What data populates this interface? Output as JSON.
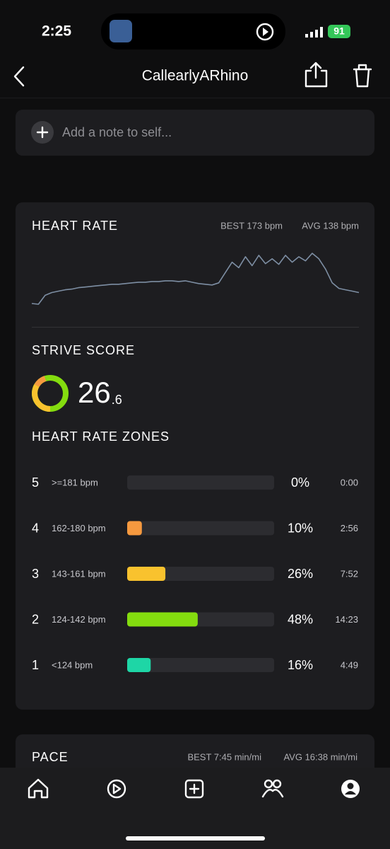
{
  "status_bar": {
    "time": "2:25",
    "battery": "91"
  },
  "header": {
    "title": "CallearlyARhino"
  },
  "note": {
    "placeholder": "Add a note to self..."
  },
  "heart_rate": {
    "title": "HEART RATE",
    "best": "BEST 173 bpm",
    "avg": "AVG 138 bpm",
    "samples": [
      100,
      99,
      112,
      116,
      118,
      120,
      121,
      123,
      124,
      125,
      126,
      127,
      128,
      128,
      129,
      130,
      131,
      131,
      132,
      132,
      133,
      133,
      132,
      133,
      131,
      129,
      128,
      127,
      130,
      145,
      160,
      152,
      168,
      155,
      170,
      158,
      165,
      157,
      170,
      160,
      168,
      162,
      173,
      165,
      150,
      130,
      122,
      120,
      118,
      116
    ]
  },
  "strive": {
    "title": "STRIVE SCORE",
    "score": "26",
    "decimal": ".6"
  },
  "zones": {
    "title": "HEART RATE ZONES",
    "rows": [
      {
        "zone": "5",
        "range": ">=181 bpm",
        "pct": 0,
        "pct_label": "0%",
        "time": "0:00"
      },
      {
        "zone": "4",
        "range": "162-180 bpm",
        "pct": 10,
        "pct_label": "10%",
        "time": "2:56",
        "color": "#f6993f"
      },
      {
        "zone": "3",
        "range": "143-161 bpm",
        "pct": 26,
        "pct_label": "26%",
        "time": "7:52",
        "color": "#f9c22e"
      },
      {
        "zone": "2",
        "range": "124-142 bpm",
        "pct": 48,
        "pct_label": "48%",
        "time": "14:23",
        "color": "#84dc0f"
      },
      {
        "zone": "1",
        "range": "<124 bpm",
        "pct": 16,
        "pct_label": "16%",
        "time": "4:49",
        "color": "#1ed6a6"
      }
    ]
  },
  "pace": {
    "title": "PACE",
    "best": "BEST 7:45 min/mi",
    "avg": "AVG 16:38 min/mi"
  }
}
